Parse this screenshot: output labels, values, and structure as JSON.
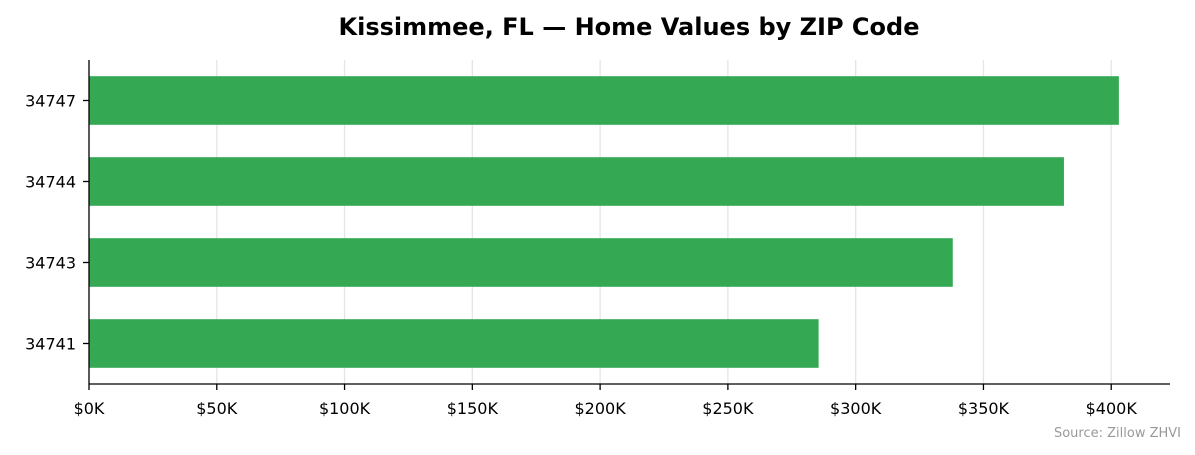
{
  "chart_data": {
    "type": "bar",
    "orientation": "horizontal",
    "title": "Kissimmee, FL — Home Values by ZIP Code",
    "xlabel": "",
    "ylabel": "",
    "categories": [
      "34747",
      "34744",
      "34743",
      "34741"
    ],
    "values": [
      403000,
      381500,
      338000,
      285500
    ],
    "xlim": [
      0,
      423000
    ],
    "x_ticks": [
      0,
      50000,
      100000,
      150000,
      200000,
      250000,
      300000,
      350000,
      400000
    ],
    "x_tick_labels": [
      "$0K",
      "$50K",
      "$100K",
      "$150K",
      "$200K",
      "$250K",
      "$300K",
      "$350K",
      "$400K"
    ],
    "grid": "vertical",
    "bar_color": "#34a853",
    "source_note": "Source: Zillow ZHVI"
  }
}
